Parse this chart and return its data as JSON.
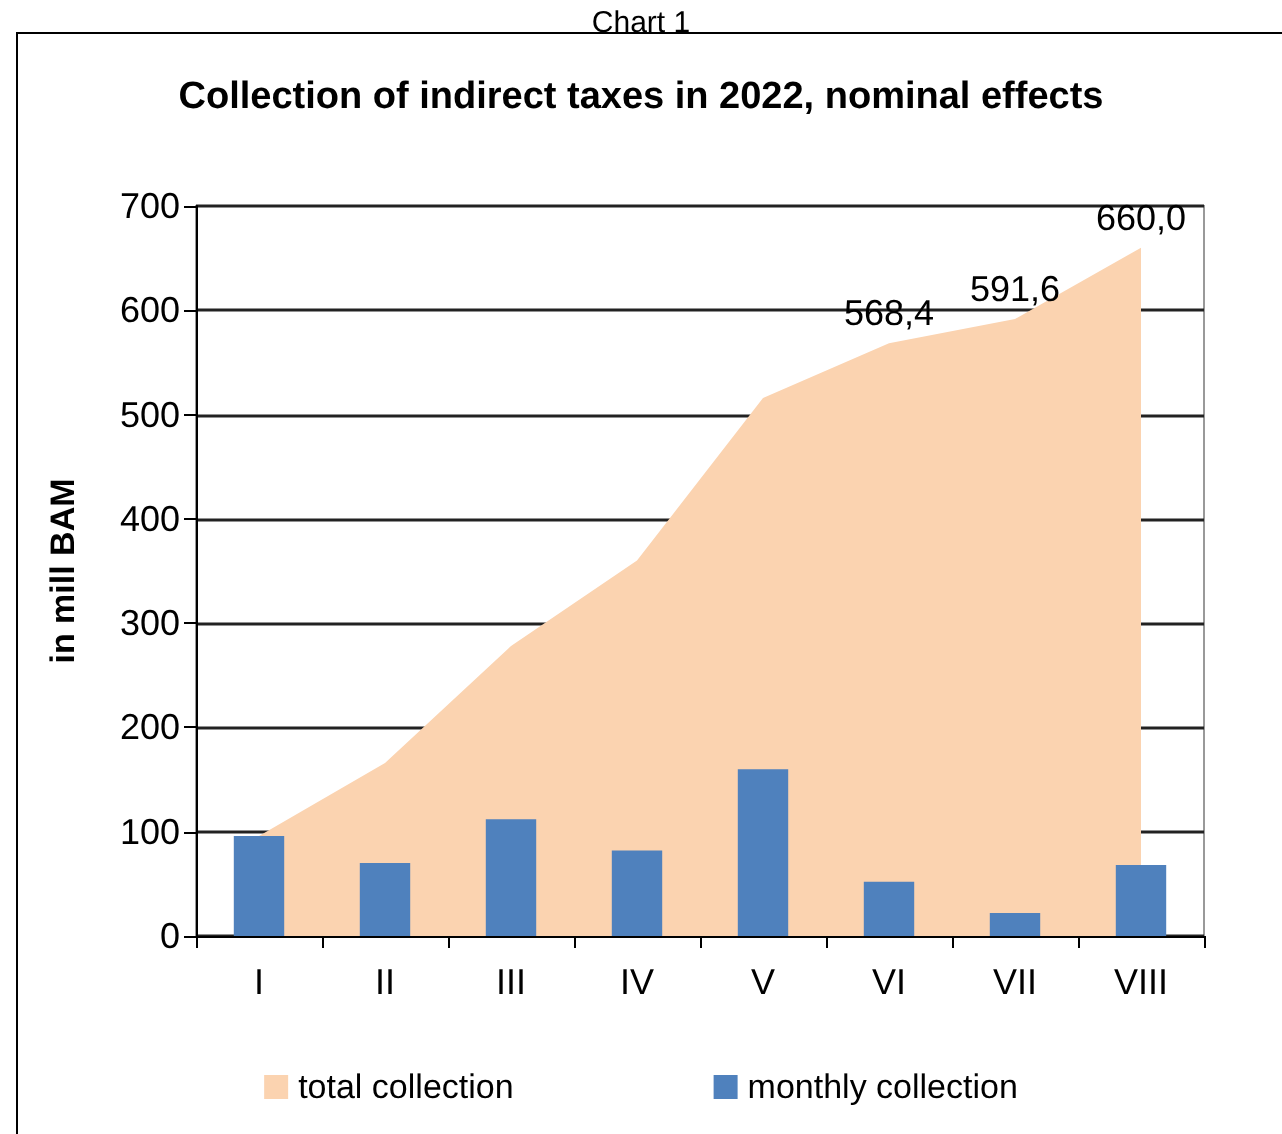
{
  "chart_data": {
    "type": "bar",
    "title": "Collection of indirect taxes in 2022, nominal effects",
    "ylabel": "in mill BAM",
    "annotations": [
      "Chart 1"
    ],
    "categories": [
      "I",
      "II",
      "III",
      "IV",
      "V",
      "VI",
      "VII",
      "VIII"
    ],
    "series": [
      {
        "name": "total collection",
        "type": "area",
        "color": "#fbd3b0",
        "values": [
          96,
          166,
          278,
          360,
          516,
          568.4,
          591.6,
          660.0
        ],
        "value_labels": [
          null,
          null,
          null,
          null,
          null,
          "568,4",
          "591,6",
          "660,0"
        ]
      },
      {
        "name": "monthly collection",
        "type": "bar",
        "color": "#4f81bd",
        "values": [
          96,
          70,
          112,
          82,
          160,
          52,
          22,
          68
        ]
      }
    ],
    "ylim": [
      0,
      700
    ],
    "yticks": [
      0,
      100,
      200,
      300,
      400,
      500,
      600,
      700
    ],
    "grid": "y",
    "legend": "bottom"
  }
}
